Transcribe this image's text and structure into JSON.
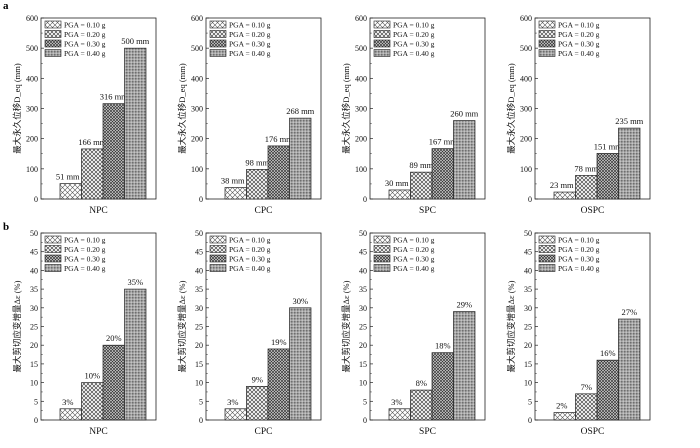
{
  "figure": {
    "panel_letters": [
      "a",
      "b"
    ]
  },
  "legend": [
    "PGA = 0.10 g",
    "PGA = 0.20 g",
    "PGA = 0.30 g",
    "PGA = 0.40 g"
  ],
  "chart_data": [
    {
      "type": "bar",
      "row": 0,
      "col": 0,
      "category": "NPC",
      "ylabel": "最大永久位移D_eq (mm)",
      "ylim": [
        0,
        600
      ],
      "yticks": [
        0,
        100,
        200,
        300,
        400,
        500,
        600
      ],
      "series": [
        {
          "name": "PGA = 0.10 g",
          "value": 51,
          "label": "51 mm"
        },
        {
          "name": "PGA = 0.20 g",
          "value": 166,
          "label": "166 mm"
        },
        {
          "name": "PGA = 0.30 g",
          "value": 316,
          "label": "316 mm"
        },
        {
          "name": "PGA = 0.40 g",
          "value": 500,
          "label": "500 mm"
        }
      ]
    },
    {
      "type": "bar",
      "row": 0,
      "col": 1,
      "category": "CPC",
      "ylabel": "最大永久位移D_eq (mm)",
      "ylim": [
        0,
        600
      ],
      "yticks": [
        0,
        100,
        200,
        300,
        400,
        500,
        600
      ],
      "series": [
        {
          "name": "PGA = 0.10 g",
          "value": 38,
          "label": "38 mm"
        },
        {
          "name": "PGA = 0.20 g",
          "value": 98,
          "label": "98 mm"
        },
        {
          "name": "PGA = 0.30 g",
          "value": 176,
          "label": "176 mm"
        },
        {
          "name": "PGA = 0.40 g",
          "value": 268,
          "label": "268 mm"
        }
      ]
    },
    {
      "type": "bar",
      "row": 0,
      "col": 2,
      "category": "SPC",
      "ylabel": "最大永久位移D_eq (mm)",
      "ylim": [
        0,
        600
      ],
      "yticks": [
        0,
        100,
        200,
        300,
        400,
        500,
        600
      ],
      "series": [
        {
          "name": "PGA = 0.10 g",
          "value": 30,
          "label": "30 mm"
        },
        {
          "name": "PGA = 0.20 g",
          "value": 89,
          "label": "89 mm"
        },
        {
          "name": "PGA = 0.30 g",
          "value": 167,
          "label": "167 mm"
        },
        {
          "name": "PGA = 0.40 g",
          "value": 260,
          "label": "260 mm"
        }
      ]
    },
    {
      "type": "bar",
      "row": 0,
      "col": 3,
      "category": "OSPC",
      "ylabel": "最大永久位移D_eq (mm)",
      "ylim": [
        0,
        600
      ],
      "yticks": [
        0,
        100,
        200,
        300,
        400,
        500,
        600
      ],
      "series": [
        {
          "name": "PGA = 0.10 g",
          "value": 23,
          "label": "23 mm"
        },
        {
          "name": "PGA = 0.20 g",
          "value": 78,
          "label": "78 mm"
        },
        {
          "name": "PGA = 0.30 g",
          "value": 151,
          "label": "151 mm"
        },
        {
          "name": "PGA = 0.40 g",
          "value": 235,
          "label": "235 mm"
        }
      ]
    },
    {
      "type": "bar",
      "row": 1,
      "col": 0,
      "category": "NPC",
      "ylabel": "最大剪切应变增量Δε (%)",
      "ylim": [
        0,
        50
      ],
      "yticks": [
        0,
        5,
        10,
        15,
        20,
        25,
        30,
        35,
        40,
        45,
        50
      ],
      "series": [
        {
          "name": "PGA = 0.10 g",
          "value": 3,
          "label": "3%"
        },
        {
          "name": "PGA = 0.20 g",
          "value": 10,
          "label": "10%"
        },
        {
          "name": "PGA = 0.30 g",
          "value": 20,
          "label": "20%"
        },
        {
          "name": "PGA = 0.40 g",
          "value": 35,
          "label": "35%"
        }
      ]
    },
    {
      "type": "bar",
      "row": 1,
      "col": 1,
      "category": "CPC",
      "ylabel": "最大剪切应变增量Δε (%)",
      "ylim": [
        0,
        50
      ],
      "yticks": [
        0,
        5,
        10,
        15,
        20,
        25,
        30,
        35,
        40,
        45,
        50
      ],
      "series": [
        {
          "name": "PGA = 0.10 g",
          "value": 3,
          "label": "3%"
        },
        {
          "name": "PGA = 0.20 g",
          "value": 9,
          "label": "9%"
        },
        {
          "name": "PGA = 0.30 g",
          "value": 19,
          "label": "19%"
        },
        {
          "name": "PGA = 0.40 g",
          "value": 30,
          "label": "30%"
        }
      ]
    },
    {
      "type": "bar",
      "row": 1,
      "col": 2,
      "category": "SPC",
      "ylabel": "最大剪切应变增量Δε (%)",
      "ylim": [
        0,
        50
      ],
      "yticks": [
        0,
        5,
        10,
        15,
        20,
        25,
        30,
        35,
        40,
        45,
        50
      ],
      "series": [
        {
          "name": "PGA = 0.10 g",
          "value": 3,
          "label": "3%"
        },
        {
          "name": "PGA = 0.20 g",
          "value": 8,
          "label": "8%"
        },
        {
          "name": "PGA = 0.30 g",
          "value": 18,
          "label": "18%"
        },
        {
          "name": "PGA = 0.40 g",
          "value": 29,
          "label": "29%"
        }
      ]
    },
    {
      "type": "bar",
      "row": 1,
      "col": 3,
      "category": "OSPC",
      "ylabel": "最大剪切应变增量Δε (%)",
      "ylim": [
        0,
        50
      ],
      "yticks": [
        0,
        5,
        10,
        15,
        20,
        25,
        30,
        35,
        40,
        45,
        50
      ],
      "series": [
        {
          "name": "PGA = 0.10 g",
          "value": 2,
          "label": "2%"
        },
        {
          "name": "PGA = 0.20 g",
          "value": 7,
          "label": "7%"
        },
        {
          "name": "PGA = 0.30 g",
          "value": 16,
          "label": "16%"
        },
        {
          "name": "PGA = 0.40 g",
          "value": 27,
          "label": "27%"
        }
      ]
    }
  ]
}
